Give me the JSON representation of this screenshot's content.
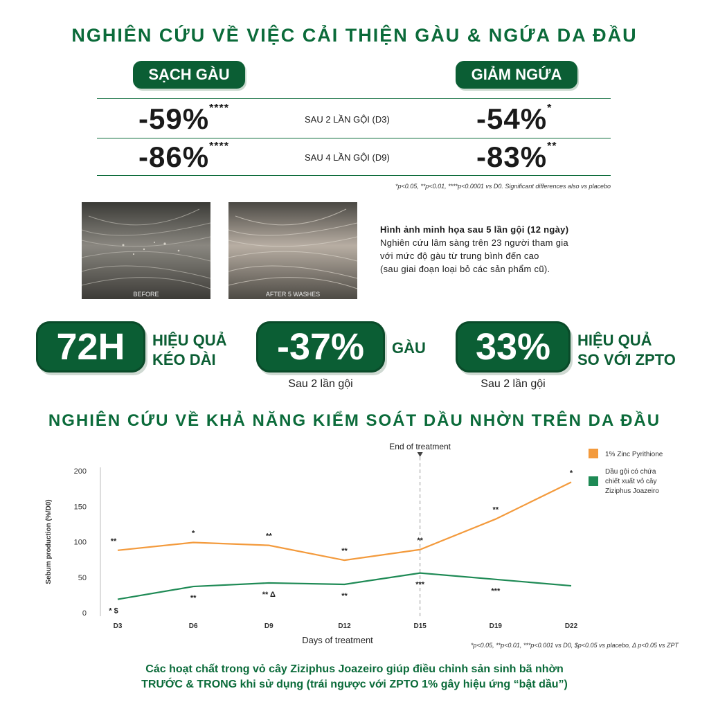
{
  "study1": {
    "title": "NGHIÊN CỨU VỀ VIỆC CẢI THIỆN GÀU & NGỨA DA ĐẦU",
    "left_pill": "SẠCH GÀU",
    "right_pill": "GIẢM NGỨA",
    "rows": [
      {
        "left_value": "-59%",
        "left_sig": "****",
        "label": "SAU 2 LẦN GỘI (D3)",
        "right_value": "-54%",
        "right_sig": "*"
      },
      {
        "left_value": "-86%",
        "left_sig": "****",
        "label": "SAU 4 LẦN GỘI (D9)",
        "right_value": "-83%",
        "right_sig": "**"
      }
    ],
    "footnote": "*p<0.05, **p<0.01, ****p<0.0001 vs D0. Significant differences also vs placebo"
  },
  "photos": {
    "before_label": "BEFORE",
    "after_label": "AFTER 5 WASHES"
  },
  "illustration": {
    "heading": "Hình ảnh minh họa sau 5 lần gội (12 ngày)",
    "lines": [
      "Nghiên cứu lâm sàng trên 23 người tham gia",
      "với mức độ gàu từ trung bình đến cao",
      "(sau giai đoạn loại bỏ các sản phẩm cũ)."
    ]
  },
  "stats": [
    {
      "badge": "72H",
      "text_line1": "HIỆU QUẢ",
      "text_line2": "KÉO DÀI",
      "sub": ""
    },
    {
      "badge": "-37%",
      "text_line1": "GÀU",
      "text_line2": "",
      "sub": "Sau 2 lần gội"
    },
    {
      "badge": "33%",
      "text_line1": "HIỆU QUẢ",
      "text_line2": "SO VỚI ZPTO",
      "sub": "Sau 2 lần gội"
    }
  ],
  "study2": {
    "title": "NGHIÊN CỨU VỀ KHẢ NĂNG KIỂM SOÁT DẦU NHỜN TRÊN DA ĐẦU"
  },
  "colors": {
    "brand_green": "#0b5e34",
    "orange": "#f39a3c",
    "teal_green": "#1e8a55"
  },
  "chart_data": {
    "type": "line",
    "ylabel": "Sebum production (%/D0)",
    "xlabel": "Days of treatment",
    "categories": [
      "D3",
      "D6",
      "D9",
      "D12",
      "D15",
      "D19",
      "D22"
    ],
    "yticks": [
      0,
      50,
      100,
      150,
      200
    ],
    "ylim": [
      0,
      200
    ],
    "marker_label": "End of treatment",
    "marker_category": "D15",
    "series": [
      {
        "name": "1% Zinc Pyrithione",
        "color": "#f39a3c",
        "values": [
          88,
          99,
          95,
          74,
          89,
          132,
          184
        ],
        "annotations": [
          "**",
          "*",
          "**",
          "**",
          "**",
          "**",
          "*"
        ]
      },
      {
        "name": "Dầu gội có chứa chiết xuất vỏ cây Ziziphus Joazeiro",
        "color": "#1e8a55",
        "values": [
          19,
          37,
          42,
          40,
          56,
          47,
          38
        ],
        "annotations": [
          "* $",
          "**",
          "** Δ",
          "**",
          "***",
          "***",
          ""
        ]
      }
    ],
    "legend_position": "top-right",
    "footnote": "*p<0.05, **p<0.01, ***p<0.001 vs D0, $p<0.05 vs placebo, Δ p<0.05 vs ZPT"
  },
  "conclusion": {
    "line1": "Các hoạt chất trong vỏ cây Ziziphus Joazeiro giúp điều chỉnh sản sinh bã nhờn",
    "line2": "TRƯỚC & TRONG khi sử dụng (trái ngược với ZPTO 1% gây hiệu ứng “bật dầu”)"
  }
}
